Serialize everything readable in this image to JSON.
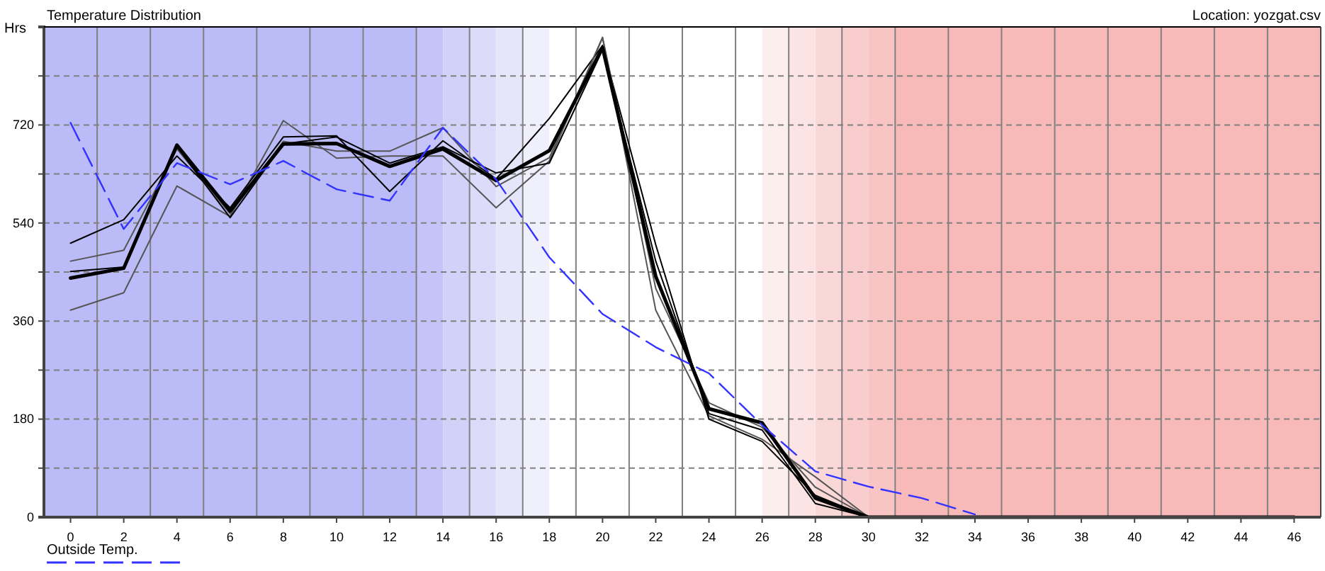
{
  "chart_data": {
    "type": "line",
    "title": "Temperature Distribution",
    "ylabel": "Hrs",
    "annotations": [
      "Location: yozgat.csv"
    ],
    "x": [
      0,
      2,
      4,
      6,
      8,
      10,
      12,
      14,
      16,
      18,
      20,
      22,
      24,
      26,
      28,
      30,
      32,
      34,
      36,
      38,
      40,
      42,
      44,
      46
    ],
    "xlim": [
      -1,
      47
    ],
    "xticks": [
      0,
      {
        "value": 1,
        "label": null
      },
      2,
      {
        "value": 3,
        "label": null
      },
      4,
      {
        "value": 5,
        "label": null
      },
      6,
      {
        "value": 7,
        "label": null
      },
      8,
      {
        "value": 9,
        "label": null
      },
      10,
      {
        "value": 11,
        "label": null
      },
      12,
      {
        "value": 13,
        "label": null
      },
      14,
      {
        "value": 15,
        "label": null
      },
      16,
      {
        "value": 17,
        "label": null
      },
      18,
      {
        "value": 19,
        "label": null
      },
      20,
      {
        "value": 21,
        "label": null
      },
      22,
      {
        "value": 23,
        "label": null
      },
      24,
      {
        "value": 25,
        "label": null
      },
      26,
      {
        "value": 27,
        "label": null
      },
      28,
      {
        "value": 29,
        "label": null
      },
      30,
      {
        "value": 31,
        "label": null
      },
      32,
      {
        "value": 33,
        "label": null
      },
      34,
      {
        "value": 35,
        "label": null
      },
      36,
      {
        "value": 37,
        "label": null
      },
      38,
      {
        "value": 39,
        "label": null
      },
      40,
      {
        "value": 41,
        "label": null
      },
      42,
      {
        "value": 43,
        "label": null
      },
      44,
      {
        "value": 45,
        "label": null
      },
      46
    ],
    "ylim": [
      0,
      900
    ],
    "yticks": [
      0,
      {
        "value": 90,
        "label": null
      },
      180,
      {
        "value": 270,
        "label": null
      },
      360,
      {
        "value": 450,
        "label": null
      },
      540,
      {
        "value": 630,
        "label": null
      },
      720,
      {
        "value": 810,
        "label": null
      }
    ],
    "grid": true,
    "legend": "bottom left",
    "line_style": "solid",
    "marker": "none",
    "bands": [
      {
        "axis": "x",
        "from": -1,
        "to": 13,
        "color": "#bbbbf8"
      },
      {
        "axis": "x",
        "from": 13,
        "to": 14,
        "color": "#c4c4f8"
      },
      {
        "axis": "x",
        "from": 14,
        "to": 15,
        "color": "#d2d2f9"
      },
      {
        "axis": "x",
        "from": 15,
        "to": 16,
        "color": "#dcdcfa"
      },
      {
        "axis": "x",
        "from": 16,
        "to": 17,
        "color": "#e6e6fb"
      },
      {
        "axis": "x",
        "from": 17,
        "to": 18,
        "color": "#f0f0fd"
      },
      {
        "axis": "x",
        "from": 26,
        "to": 27,
        "color": "#fdeeee"
      },
      {
        "axis": "x",
        "from": 27,
        "to": 28,
        "color": "#fce4e4"
      },
      {
        "axis": "x",
        "from": 28,
        "to": 29,
        "color": "#fbd8d8"
      },
      {
        "axis": "x",
        "from": 29,
        "to": 30,
        "color": "#f9cdcd"
      },
      {
        "axis": "x",
        "from": 30,
        "to": 31,
        "color": "#f9c4c4"
      },
      {
        "axis": "x",
        "from": 31,
        "to": 47,
        "color": "#f8b9b9"
      }
    ],
    "series": [
      {
        "color": "#555555",
        "values": [
          380,
          412,
          608,
          552,
          728,
          659,
          663,
          663,
          568,
          654,
          880,
          380,
          186,
          143,
          74,
          0,
          0,
          0,
          0,
          0,
          0,
          0,
          0,
          0
        ]
      },
      {
        "color": "#000000",
        "values": [
          503,
          546,
          663,
          568,
          698,
          700,
          598,
          691,
          621,
          732,
          866,
          500,
          180,
          139,
          40,
          0,
          0,
          0,
          0,
          0,
          0,
          0,
          0,
          0
        ]
      },
      {
        "color": "#555555",
        "values": [
          470,
          490,
          676,
          557,
          690,
          672,
          672,
          715,
          607,
          660,
          881,
          420,
          210,
          165,
          55,
          0,
          0,
          0,
          0,
          0,
          0,
          0,
          0,
          0
        ]
      },
      {
        "color": "#000000",
        "values": [
          451,
          459,
          680,
          550,
          685,
          698,
          650,
          680,
          632,
          650,
          858,
          470,
          190,
          160,
          25,
          0,
          0,
          0,
          0,
          0,
          0,
          0,
          0,
          0
        ]
      },
      {
        "color": "#000000",
        "values": [
          439,
          457,
          683,
          562,
          685,
          686,
          644,
          676,
          618,
          673,
          862,
          442,
          199,
          173,
          35,
          0,
          0,
          0,
          0,
          0,
          0,
          0,
          0,
          0
        ]
      },
      {
        "name": "Outside Temp.",
        "color": "#3333ff",
        "line_style": "dashed",
        "values": [
          724,
          529,
          650,
          611,
          654,
          602,
          581,
          715,
          620,
          477,
          373,
          312,
          264,
          169,
          84,
          56,
          35,
          5,
          null,
          null,
          null,
          null,
          null,
          null
        ]
      }
    ]
  }
}
